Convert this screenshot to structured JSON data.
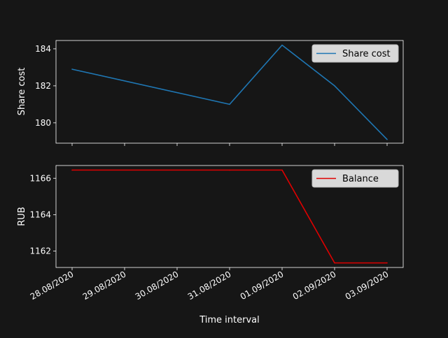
{
  "colors": {
    "background": "#161616",
    "axes": "#ffffff",
    "text": "#ffffff",
    "legend_bg": "#d9d9d9",
    "legend_border": "#bdbdbd",
    "legend_text": "#000000"
  },
  "chart_data": [
    {
      "type": "line",
      "ylabel": "Share cost",
      "xlabel": "",
      "x_ticks": [
        "28.08/2020",
        "29.08/2020",
        "30.08/2020",
        "31.08/2020",
        "01.09/2020",
        "02.09/2020",
        "03.09/2020"
      ],
      "y_ticks": [
        180,
        182,
        184
      ],
      "ylim": [
        178.9,
        184.45
      ],
      "legend_position": "top-right",
      "series": [
        {
          "name": "Share cost",
          "color": "#1f77b4",
          "points": [
            {
              "x": "28.08/2020",
              "y": 182.9
            },
            {
              "x": "31.08/2020",
              "y": 181.0
            },
            {
              "x": "01.09/2020",
              "y": 184.2
            },
            {
              "x": "02.09/2020",
              "y": 182.0
            },
            {
              "x": "03.09/2020",
              "y": 179.1
            }
          ]
        }
      ]
    },
    {
      "type": "line",
      "ylabel": "RUB",
      "xlabel": "Time interval",
      "x_ticks": [
        "28.08/2020",
        "29.08/2020",
        "30.08/2020",
        "31.08/2020",
        "01.09/2020",
        "02.09/2020",
        "03.09/2020"
      ],
      "y_ticks": [
        1162,
        1164,
        1166
      ],
      "ylim": [
        1161.1,
        1166.7
      ],
      "legend_position": "top-right",
      "series": [
        {
          "name": "Balance",
          "color": "#e00000",
          "points": [
            {
              "x": "28.08/2020",
              "y": 1166.45
            },
            {
              "x": "31.08/2020",
              "y": 1166.45
            },
            {
              "x": "01.09/2020",
              "y": 1166.45
            },
            {
              "x": "02.09/2020",
              "y": 1161.35
            },
            {
              "x": "03.09/2020",
              "y": 1161.35
            }
          ]
        }
      ]
    }
  ]
}
